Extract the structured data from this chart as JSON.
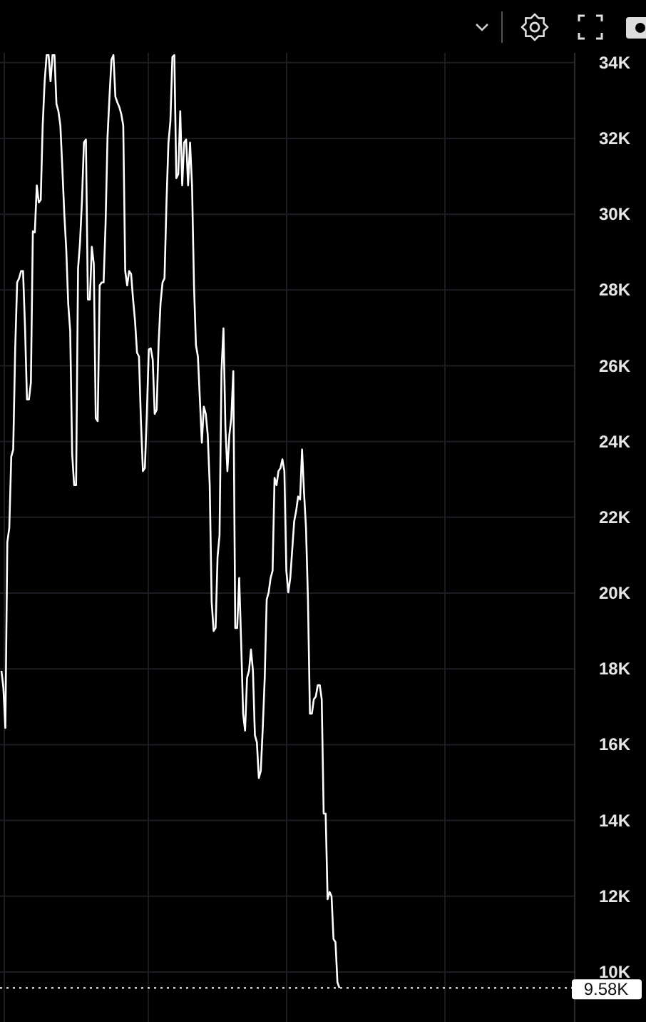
{
  "chart_data": {
    "type": "line",
    "categories": [
      null,
      null,
      null,
      null,
      null,
      null,
      null,
      null,
      null,
      null,
      null,
      null,
      null,
      null,
      null,
      null,
      null,
      null,
      null,
      null,
      null,
      null,
      null,
      null,
      null,
      null,
      null,
      null,
      null,
      null,
      null,
      null,
      null,
      null,
      null,
      null,
      null,
      null,
      null,
      null,
      null,
      null,
      null,
      null,
      null,
      null,
      null,
      null,
      null,
      null,
      null,
      null,
      null,
      null,
      null,
      null,
      null,
      null,
      null,
      null,
      null,
      null,
      null,
      null,
      null,
      null,
      null,
      null,
      null,
      null,
      null,
      null,
      null,
      null,
      null,
      null,
      null,
      null,
      null,
      null,
      null,
      null,
      null,
      null,
      null,
      null,
      null,
      null,
      null,
      null,
      null,
      null,
      null,
      null,
      null,
      null,
      null,
      null,
      null,
      null,
      null,
      null,
      null,
      null,
      null,
      null,
      null,
      null,
      null,
      null,
      null,
      null,
      null,
      null,
      null,
      null,
      null,
      null,
      null,
      null,
      null,
      null,
      null,
      null,
      null,
      null,
      null,
      null,
      null,
      null,
      null,
      null,
      null,
      null,
      null,
      null,
      null,
      null,
      null,
      null,
      null,
      null,
      null,
      null,
      null,
      null,
      null,
      null,
      null,
      null,
      null,
      null,
      null,
      null,
      null,
      null,
      null,
      null,
      null,
      null,
      null,
      null,
      null,
      null,
      null,
      null,
      null,
      null,
      null,
      null,
      null,
      null,
      null
    ],
    "series": [
      {
        "color": "#ffffff",
        "values": [
          17950,
          17500,
          16440,
          21340,
          21720,
          23600,
          23790,
          26430,
          28200,
          28310,
          28500,
          28500,
          27030,
          25110,
          25110,
          25560,
          29550,
          29520,
          30760,
          30310,
          30380,
          32340,
          33510,
          34200,
          34200,
          33510,
          34200,
          34200,
          32910,
          32720,
          32340,
          31210,
          30010,
          29060,
          27630,
          26920,
          23680,
          22850,
          22850,
          28570,
          29250,
          30380,
          31890,
          31970,
          27750,
          27750,
          29140,
          28690,
          24620,
          24540,
          28120,
          28200,
          28200,
          29740,
          32040,
          33100,
          34080,
          34200,
          33100,
          32950,
          32830,
          32640,
          32340,
          28500,
          28120,
          28500,
          28420,
          27750,
          27180,
          26350,
          26240,
          24540,
          23220,
          23300,
          24730,
          26430,
          26460,
          26160,
          24730,
          24840,
          26610,
          27670,
          28200,
          28310,
          30310,
          31890,
          32460,
          34150,
          34200,
          30950,
          31060,
          32720,
          30760,
          31890,
          31970,
          30760,
          31890,
          30760,
          28120,
          26540,
          26240,
          25110,
          23970,
          24920,
          24730,
          24170,
          22850,
          19760,
          19000,
          19080,
          20960,
          21530,
          25860,
          26990,
          24350,
          23220,
          24170,
          24620,
          25860,
          19080,
          19080,
          20400,
          18700,
          16820,
          16370,
          17760,
          17950,
          18510,
          17950,
          16250,
          16060,
          15120,
          15310,
          16440,
          17760,
          19830,
          20020,
          20400,
          20590,
          23040,
          22850,
          23220,
          23300,
          23530,
          23220,
          20590,
          20020,
          20400,
          21150,
          21900,
          22170,
          22550,
          22470,
          23790,
          22660,
          21720,
          19830,
          16820,
          16820,
          17200,
          17270,
          17570,
          17570,
          17200,
          14180,
          14180,
          11920,
          12110,
          12000,
          10870,
          10790,
          9730,
          9580
        ]
      }
    ],
    "ylim": [
      8680,
      34260
    ],
    "yticks": [
      {
        "value": 10000,
        "label": "10K"
      },
      {
        "value": 12000,
        "label": "12K"
      },
      {
        "value": 14000,
        "label": "14K"
      },
      {
        "value": 16000,
        "label": "16K"
      },
      {
        "value": 18000,
        "label": "18K"
      },
      {
        "value": 20000,
        "label": "20K"
      },
      {
        "value": 22000,
        "label": "22K"
      },
      {
        "value": 24000,
        "label": "24K"
      },
      {
        "value": 26000,
        "label": "26K"
      },
      {
        "value": 28000,
        "label": "28K"
      },
      {
        "value": 30000,
        "label": "30K"
      },
      {
        "value": 32000,
        "label": "32K"
      },
      {
        "value": 34000,
        "label": "34K"
      }
    ],
    "tick_labels": "y",
    "grid": true,
    "marker": "none",
    "line_style": "solid",
    "ref_lines": [
      {
        "axis": "y",
        "value": 9580,
        "label": "9.58K",
        "color": "#ffffff",
        "line_style": "dotted"
      }
    ]
  }
}
